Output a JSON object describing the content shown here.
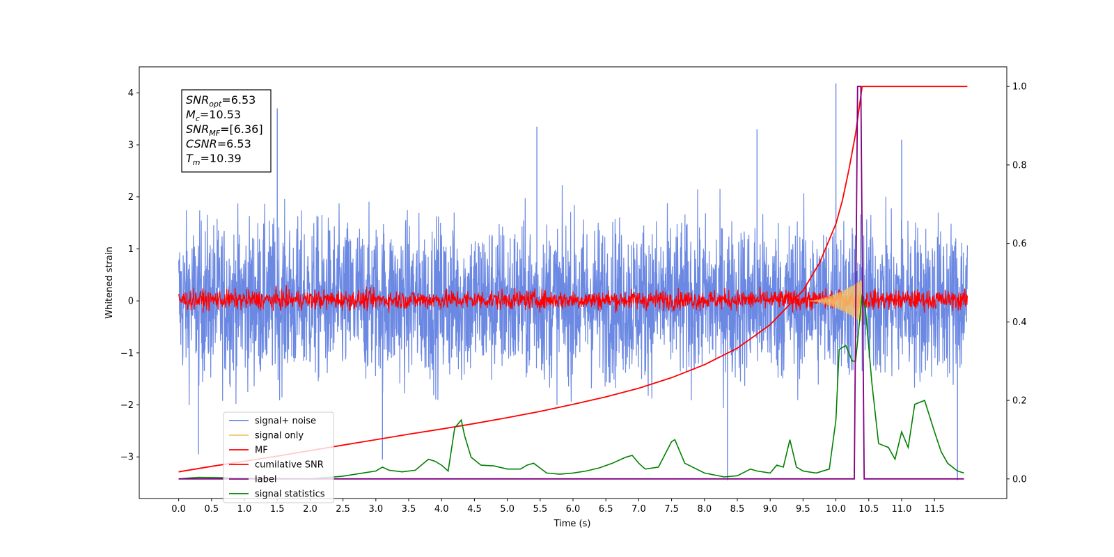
{
  "chart_data": {
    "type": "line",
    "xlabel": "Time (s)",
    "ylabel": "Whitened strain",
    "xlim": [
      -0.6,
      12.6
    ],
    "ylim": [
      -3.8,
      4.5
    ],
    "y2lim": [
      -0.05,
      1.05
    ],
    "x_ticks": [
      "0.0",
      "0.5",
      "1.0",
      "1.5",
      "2.0",
      "2.5",
      "3.0",
      "3.5",
      "4.0",
      "4.5",
      "5.0",
      "5.5",
      "6.0",
      "6.5",
      "7.0",
      "7.5",
      "8.0",
      "8.5",
      "9.0",
      "9.5",
      "10.0",
      "10.5",
      "11.0",
      "11.5"
    ],
    "y_ticks": [
      "−3",
      "−2",
      "−1",
      "0",
      "1",
      "2",
      "3",
      "4"
    ],
    "y2_ticks": [
      "0.0",
      "0.2",
      "0.4",
      "0.6",
      "0.8",
      "1.0"
    ],
    "annotations": [
      {
        "base": "SNR",
        "sub": "opt",
        "value": "=6.53"
      },
      {
        "base": "M",
        "sub": "c",
        "value": "=10.53"
      },
      {
        "base": "SNR",
        "sub": "MF",
        "value": "=[6.36]"
      },
      {
        "base": "CSNR",
        "sub": "",
        "value": "=6.53"
      },
      {
        "base": "T",
        "sub": "m",
        "value": "=10.39"
      }
    ],
    "legend": {
      "placement": "lower-left",
      "entries": [
        {
          "label": "signal+ noise",
          "color": "#6b88e3"
        },
        {
          "label": "signal only",
          "color": "#f5c46b"
        },
        {
          "label": "MF",
          "color": "#ff0000"
        },
        {
          "label": "cumilative SNR",
          "color": "#ff0000"
        },
        {
          "label": "label",
          "color": "#800080"
        },
        {
          "label": "signal statistics",
          "color": "#008000"
        }
      ]
    },
    "series": [
      {
        "name": "signal+ noise",
        "axis": "left",
        "color": "#6b88e3",
        "style": "dense noise",
        "x_range": [
          0.0,
          12.0
        ],
        "value_range": [
          -3.4,
          4.2
        ],
        "peaks": [
          [
            1.5,
            3.7
          ],
          [
            5.45,
            3.35
          ],
          [
            8.8,
            3.3
          ],
          [
            10.0,
            4.18
          ],
          [
            11.0,
            3.1
          ]
        ],
        "troughs": [
          [
            0.3,
            -2.95
          ],
          [
            3.1,
            -3.05
          ],
          [
            8.35,
            -3.45
          ],
          [
            11.85,
            -3.45
          ]
        ]
      },
      {
        "name": "signal only",
        "axis": "left",
        "color": "#f5c46b",
        "style": "chirp",
        "x_range": [
          9.6,
          10.42
        ],
        "peak_amplitude": 0.4
      },
      {
        "name": "MF",
        "axis": "left",
        "color": "#ff0000",
        "style": "dense noise",
        "x_range": [
          0.0,
          12.0
        ],
        "value_range": [
          -0.23,
          0.55
        ]
      },
      {
        "name": "cumilative SNR",
        "axis": "right",
        "color": "#ff0000",
        "x": [
          0.0,
          0.5,
          1.0,
          1.5,
          2.0,
          2.5,
          3.0,
          3.5,
          4.0,
          4.5,
          5.0,
          5.5,
          6.0,
          6.5,
          7.0,
          7.5,
          8.0,
          8.5,
          9.0,
          9.5,
          9.75,
          10.0,
          10.1,
          10.2,
          10.3,
          10.35,
          10.4,
          11.0,
          12.0
        ],
        "y": [
          0.018,
          0.032,
          0.045,
          0.058,
          0.072,
          0.086,
          0.1,
          0.114,
          0.127,
          0.141,
          0.156,
          0.172,
          0.19,
          0.209,
          0.231,
          0.258,
          0.291,
          0.333,
          0.393,
          0.48,
          0.55,
          0.65,
          0.71,
          0.79,
          0.88,
          0.94,
          1.0,
          1.0,
          1.0
        ]
      },
      {
        "name": "label",
        "axis": "right",
        "color": "#800080",
        "x": [
          0.0,
          10.28,
          10.33,
          10.38,
          10.43,
          11.95
        ],
        "y": [
          0.0,
          0.0,
          1.0,
          1.0,
          0.0,
          0.0
        ]
      },
      {
        "name": "signal statistics",
        "axis": "right",
        "color": "#008000",
        "x": [
          0.0,
          0.3,
          1.0,
          1.5,
          2.0,
          2.5,
          2.8,
          3.0,
          3.1,
          3.2,
          3.4,
          3.6,
          3.8,
          3.9,
          4.0,
          4.1,
          4.15,
          4.2,
          4.3,
          4.35,
          4.45,
          4.6,
          4.8,
          5.0,
          5.2,
          5.3,
          5.4,
          5.6,
          5.8,
          6.0,
          6.2,
          6.4,
          6.6,
          6.8,
          6.9,
          7.0,
          7.1,
          7.3,
          7.5,
          7.55,
          7.7,
          8.0,
          8.3,
          8.5,
          8.7,
          8.8,
          9.0,
          9.1,
          9.2,
          9.3,
          9.4,
          9.5,
          9.7,
          9.9,
          10.0,
          10.05,
          10.15,
          10.25,
          10.3,
          10.4,
          10.45,
          10.55,
          10.65,
          10.8,
          10.9,
          11.0,
          11.1,
          11.2,
          11.35,
          11.5,
          11.6,
          11.7,
          11.85,
          11.95
        ],
        "y": [
          0.0,
          0.004,
          0.002,
          0.001,
          0.0,
          0.007,
          0.015,
          0.02,
          0.03,
          0.022,
          0.018,
          0.022,
          0.05,
          0.045,
          0.035,
          0.02,
          0.075,
          0.13,
          0.15,
          0.11,
          0.055,
          0.035,
          0.033,
          0.025,
          0.025,
          0.035,
          0.04,
          0.015,
          0.012,
          0.015,
          0.02,
          0.028,
          0.04,
          0.055,
          0.06,
          0.04,
          0.025,
          0.03,
          0.095,
          0.1,
          0.04,
          0.015,
          0.005,
          0.008,
          0.025,
          0.02,
          0.015,
          0.035,
          0.03,
          0.1,
          0.03,
          0.02,
          0.015,
          0.025,
          0.15,
          0.33,
          0.34,
          0.3,
          0.3,
          0.47,
          0.43,
          0.24,
          0.09,
          0.08,
          0.05,
          0.12,
          0.08,
          0.19,
          0.2,
          0.12,
          0.07,
          0.04,
          0.02,
          0.015
        ]
      }
    ]
  }
}
